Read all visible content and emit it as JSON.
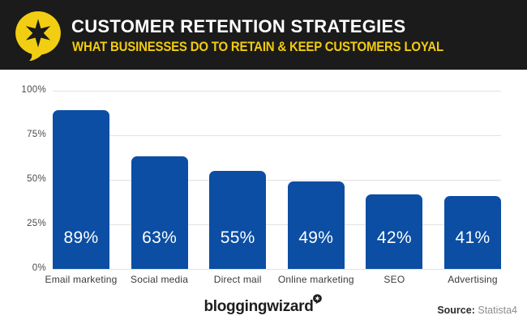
{
  "header": {
    "title": "CUSTOMER RETENTION STRATEGIES",
    "subtitle": "WHAT BUSINESSES DO TO RETAIN & KEEP CUSTOMERS LOYAL",
    "logo_icon": "speech-bubble-star-icon",
    "colors": {
      "banner_background": "#1b1b1b",
      "title_text": "#ffffff",
      "accent_yellow": "#f2ce13"
    }
  },
  "chart_data": {
    "type": "bar",
    "categories": [
      "Email marketing",
      "Social media",
      "Direct mail",
      "Online marketing",
      "SEO",
      "Advertising"
    ],
    "values": [
      89,
      63,
      55,
      49,
      42,
      41
    ],
    "value_labels": [
      "89%",
      "63%",
      "55%",
      "49%",
      "42%",
      "41%"
    ],
    "yticks": [
      100,
      75,
      50,
      25,
      0
    ],
    "ytick_labels": [
      "100%",
      "75%",
      "50%",
      "25%",
      "0%"
    ],
    "ylim": [
      0,
      100
    ],
    "grid": true,
    "legend": "none",
    "xlabel": "",
    "ylabel": "",
    "title": "",
    "bar_color": "#0b4ea4",
    "value_label_color": "#ffffff",
    "gridline_color": "#e2e2e2"
  },
  "footer": {
    "brand": "bloggingwizard",
    "brand_icon": "speech-bubble-star-icon",
    "source_label": "Source:",
    "source_value": "Statista4"
  }
}
